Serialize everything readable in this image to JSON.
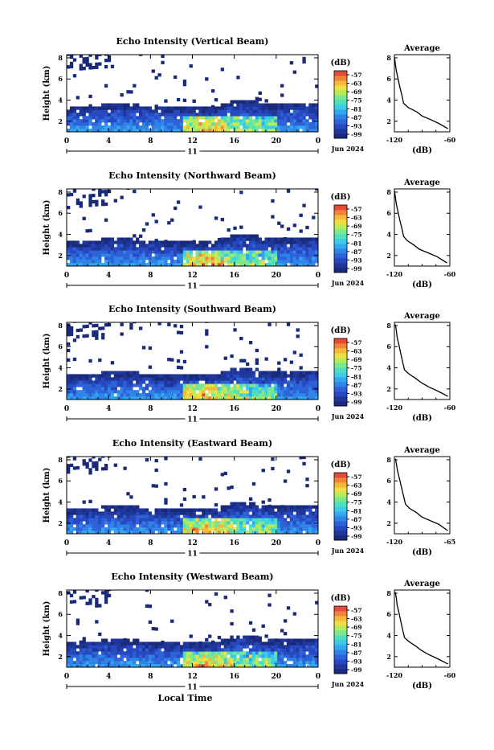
{
  "figure": {
    "xlabel_common": "Local Time",
    "date_label": "Jun 2024",
    "day_label": "11"
  },
  "colors": {
    "colorbar": [
      "#1a2a7a",
      "#20379a",
      "#2748c0",
      "#2d62d8",
      "#2f84e8",
      "#33a8f0",
      "#3ccbe8",
      "#4edfc0",
      "#7ae890",
      "#b6ec5a",
      "#eee040",
      "#f6b83a",
      "#f2843a",
      "#e44a3a"
    ]
  },
  "chart_data": [
    {
      "type": "heatmap",
      "title": "Echo Intensity (Vertical Beam)",
      "ylabel": "Height (km)",
      "x_ticks": [
        "0",
        "4",
        "8",
        "12",
        "16",
        "20",
        "0"
      ],
      "y_ticks": [
        "2",
        "4",
        "6",
        "8"
      ],
      "xlim": [
        0,
        24
      ],
      "ylim": [
        1,
        8.3
      ],
      "colorbar_unit": "(dB)",
      "colorbar_ticks": [
        "-57",
        "-63",
        "-69",
        "-75",
        "-81",
        "-87",
        "-93",
        "-99"
      ],
      "profile": {
        "title": "Average",
        "xlabel": "(dB)",
        "x_ticks": [
          "-120",
          "-60"
        ],
        "y_ticks": [
          "2",
          "4",
          "6",
          "8"
        ],
        "xlim": [
          -120,
          -60
        ],
        "ylim": [
          1,
          8.3
        ],
        "points": [
          [
            -62,
            1.3
          ],
          [
            -72,
            1.8
          ],
          [
            -82,
            2.2
          ],
          [
            -90,
            2.5
          ],
          [
            -96,
            2.9
          ],
          [
            -105,
            3.3
          ],
          [
            -110,
            3.7
          ],
          [
            -112,
            4.5
          ],
          [
            -114,
            5.2
          ],
          [
            -116,
            6.0
          ],
          [
            -118,
            6.8
          ],
          [
            -119,
            7.5
          ],
          [
            -120,
            8.1
          ]
        ]
      }
    },
    {
      "type": "heatmap",
      "title": "Echo Intensity (Northward Beam)",
      "ylabel": "Height (km)",
      "x_ticks": [
        "0",
        "4",
        "8",
        "12",
        "16",
        "20",
        "0"
      ],
      "y_ticks": [
        "2",
        "4",
        "6",
        "8"
      ],
      "xlim": [
        0,
        24
      ],
      "ylim": [
        1,
        8.3
      ],
      "colorbar_unit": "(dB)",
      "colorbar_ticks": [
        "-57",
        "-63",
        "-69",
        "-75",
        "-81",
        "-87",
        "-93",
        "-99"
      ],
      "profile": {
        "title": "Average",
        "xlabel": "(dB)",
        "x_ticks": [
          "-120",
          "-60"
        ],
        "y_ticks": [
          "2",
          "4",
          "6",
          "8"
        ],
        "xlim": [
          -120,
          -60
        ],
        "ylim": [
          1,
          8.3
        ],
        "points": [
          [
            -63,
            1.3
          ],
          [
            -74,
            1.9
          ],
          [
            -85,
            2.3
          ],
          [
            -93,
            2.6
          ],
          [
            -99,
            3.0
          ],
          [
            -106,
            3.4
          ],
          [
            -110,
            3.8
          ],
          [
            -112,
            4.6
          ],
          [
            -114,
            5.3
          ],
          [
            -116,
            6.1
          ],
          [
            -118,
            6.9
          ],
          [
            -119,
            7.6
          ],
          [
            -120,
            8.1
          ]
        ]
      }
    },
    {
      "type": "heatmap",
      "title": "Echo Intensity (Southward Beam)",
      "ylabel": "Height (km)",
      "x_ticks": [
        "0",
        "4",
        "8",
        "12",
        "16",
        "20",
        "0"
      ],
      "y_ticks": [
        "2",
        "4",
        "6",
        "8"
      ],
      "xlim": [
        0,
        24
      ],
      "ylim": [
        1,
        8.3
      ],
      "colorbar_unit": "(dB)",
      "colorbar_ticks": [
        "-57",
        "-63",
        "-69",
        "-75",
        "-81",
        "-87",
        "-93",
        "-99"
      ],
      "profile": {
        "title": "Average",
        "xlabel": "(dB)",
        "x_ticks": [
          "-120",
          "-60"
        ],
        "y_ticks": [
          "2",
          "4",
          "6",
          "8"
        ],
        "xlim": [
          -120,
          -60
        ],
        "ylim": [
          1,
          8.3
        ],
        "points": [
          [
            -62,
            1.3
          ],
          [
            -73,
            1.8
          ],
          [
            -83,
            2.2
          ],
          [
            -91,
            2.6
          ],
          [
            -97,
            3.0
          ],
          [
            -104,
            3.4
          ],
          [
            -109,
            3.8
          ],
          [
            -111,
            4.5
          ],
          [
            -113,
            5.3
          ],
          [
            -115,
            6.1
          ],
          [
            -117,
            6.9
          ],
          [
            -118,
            7.6
          ],
          [
            -119,
            8.1
          ]
        ]
      }
    },
    {
      "type": "heatmap",
      "title": "Echo Intensity (Eastward Beam)",
      "ylabel": "Height (km)",
      "x_ticks": [
        "0",
        "4",
        "8",
        "12",
        "16",
        "20",
        "0"
      ],
      "y_ticks": [
        "2",
        "4",
        "6",
        "8"
      ],
      "xlim": [
        0,
        24
      ],
      "ylim": [
        1,
        8.3
      ],
      "colorbar_unit": "(dB)",
      "colorbar_ticks": [
        "-57",
        "-63",
        "-69",
        "-75",
        "-81",
        "-87",
        "-93",
        "-99"
      ],
      "profile": {
        "title": "Average",
        "xlabel": "(dB)",
        "x_ticks": [
          "-120",
          "-65"
        ],
        "y_ticks": [
          "2",
          "4",
          "6",
          "8"
        ],
        "xlim": [
          -120,
          -65
        ],
        "ylim": [
          1,
          8.3
        ],
        "points": [
          [
            -67,
            1.3
          ],
          [
            -76,
            1.9
          ],
          [
            -86,
            2.3
          ],
          [
            -93,
            2.6
          ],
          [
            -98,
            3.0
          ],
          [
            -105,
            3.4
          ],
          [
            -109,
            3.8
          ],
          [
            -111,
            4.6
          ],
          [
            -113,
            5.4
          ],
          [
            -115,
            6.2
          ],
          [
            -117,
            7.0
          ],
          [
            -118,
            7.6
          ],
          [
            -119,
            8.1
          ]
        ]
      }
    },
    {
      "type": "heatmap",
      "title": "Echo Intensity (Westward Beam)",
      "ylabel": "Height (km)",
      "x_ticks": [
        "0",
        "4",
        "8",
        "12",
        "16",
        "20",
        "0"
      ],
      "y_ticks": [
        "2",
        "4",
        "6",
        "8"
      ],
      "xlim": [
        0,
        24
      ],
      "ylim": [
        1,
        8.3
      ],
      "colorbar_unit": "(dB)",
      "colorbar_ticks": [
        "-57",
        "-63",
        "-69",
        "-75",
        "-81",
        "-87",
        "-93",
        "-99"
      ],
      "profile": {
        "title": "Average",
        "xlabel": "(dB)",
        "x_ticks": [
          "-120",
          "-60"
        ],
        "y_ticks": [
          "2",
          "4",
          "6",
          "8"
        ],
        "xlim": [
          -120,
          -60
        ],
        "ylim": [
          1,
          8.3
        ],
        "points": [
          [
            -62,
            1.3
          ],
          [
            -73,
            1.8
          ],
          [
            -83,
            2.2
          ],
          [
            -91,
            2.6
          ],
          [
            -97,
            3.0
          ],
          [
            -104,
            3.4
          ],
          [
            -109,
            3.8
          ],
          [
            -111,
            4.5
          ],
          [
            -113,
            5.3
          ],
          [
            -115,
            6.1
          ],
          [
            -117,
            6.9
          ],
          [
            -118,
            7.6
          ],
          [
            -119,
            8.1
          ]
        ]
      }
    }
  ]
}
